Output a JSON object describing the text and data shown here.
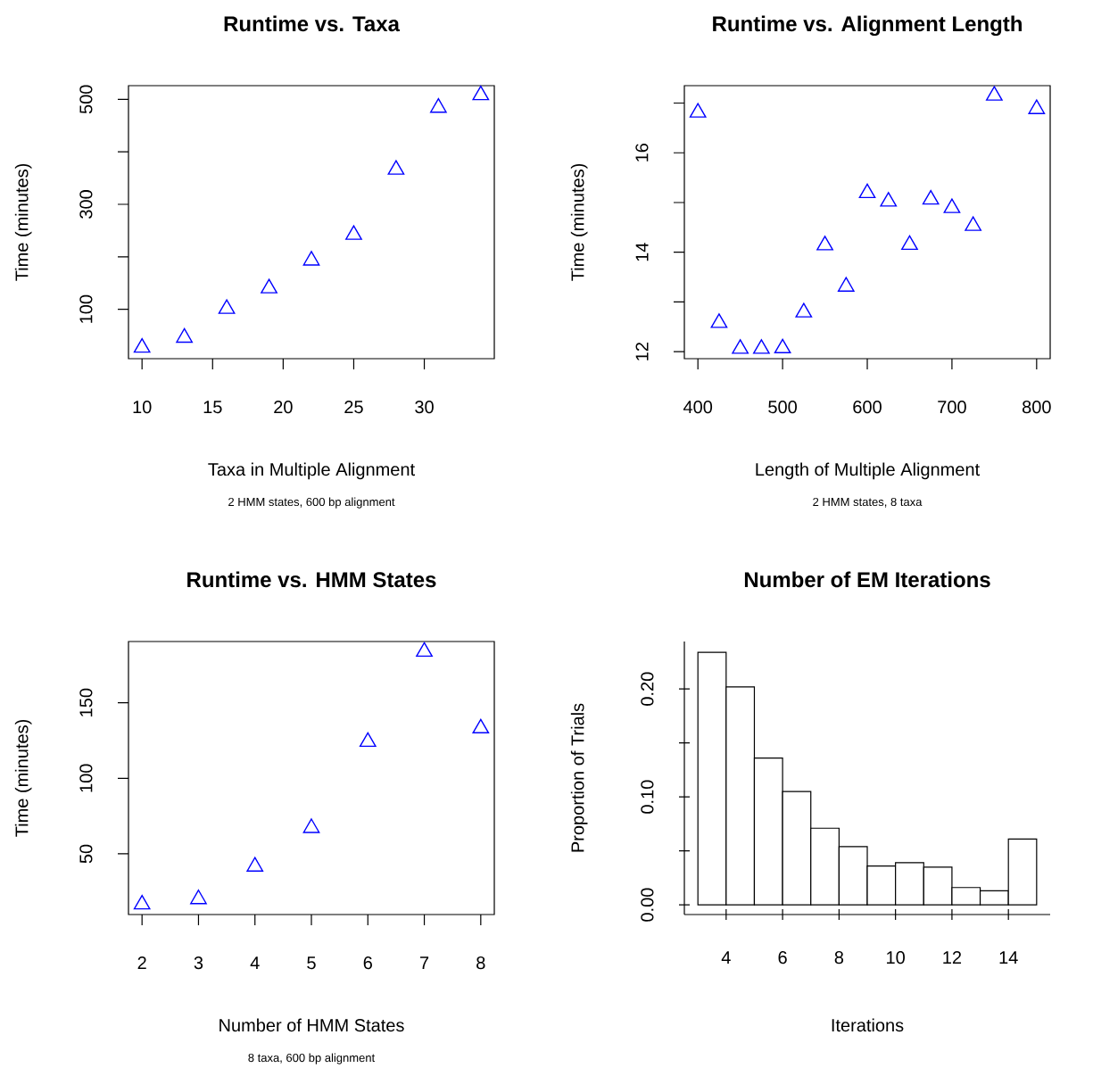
{
  "chart_data": [
    {
      "type": "scatter",
      "title": "Runtime vs. Taxa",
      "subtitle": "2 HMM states, 600 bp alignment",
      "xlabel": "Taxa in Multiple Alignment",
      "ylabel": "Time (minutes)",
      "color": "#0000ff",
      "marker": "triangle",
      "x": [
        10,
        13,
        16,
        19,
        22,
        25,
        28,
        31,
        34
      ],
      "values": [
        27,
        46,
        101,
        140,
        193,
        242,
        366,
        484,
        508
      ],
      "xlim": [
        9.04,
        34.96
      ],
      "ylim": [
        6,
        526
      ],
      "xticks": [
        10,
        15,
        20,
        25,
        30
      ],
      "yticks": [
        100,
        {
          "value": 200,
          "label": null
        },
        300,
        {
          "value": 400,
          "label": null
        },
        500
      ]
    },
    {
      "type": "scatter",
      "title": "Runtime vs. Alignment Length",
      "subtitle": "2 HMM states, 8 taxa",
      "xlabel": "Length of Multiple Alignment",
      "ylabel": "Time (minutes)",
      "color": "#0000ff",
      "marker": "triangle",
      "x": [
        400,
        425,
        450,
        475,
        500,
        525,
        550,
        575,
        600,
        625,
        650,
        675,
        700,
        725,
        750,
        800
      ],
      "values": [
        16.81,
        12.58,
        12.06,
        12.06,
        12.07,
        12.79,
        14.14,
        13.31,
        15.19,
        15.02,
        14.15,
        15.06,
        14.89,
        14.53,
        17.15,
        16.88
      ],
      "xlim": [
        384,
        816
      ],
      "ylim": [
        11.86,
        17.35
      ],
      "xticks": [
        400,
        500,
        600,
        700,
        800
      ],
      "yticks": [
        12,
        {
          "value": 13,
          "label": null
        },
        14,
        {
          "value": 15,
          "label": null
        },
        16,
        {
          "value": 17,
          "label": null
        }
      ]
    },
    {
      "type": "scatter",
      "title": "Runtime vs. HMM States",
      "subtitle": "8 taxa, 600 bp alignment",
      "xlabel": "Number of HMM States",
      "ylabel": "Time (minutes)",
      "color": "#0000ff",
      "marker": "triangle",
      "x": [
        2,
        3,
        4,
        5,
        6,
        7,
        8
      ],
      "values": [
        16.5,
        20,
        41.6,
        67.1,
        124.2,
        183.9,
        133.1
      ],
      "xlim": [
        1.76,
        8.24
      ],
      "ylim": [
        9.8,
        190.6
      ],
      "xticks": [
        2,
        3,
        4,
        5,
        6,
        7,
        8
      ],
      "yticks": [
        50,
        100,
        150
      ]
    },
    {
      "type": "histogram",
      "title": "Number of EM Iterations",
      "xlabel": "Iterations",
      "ylabel": "Proportion of Trials",
      "color": "#ffffff",
      "bins": [
        3,
        4,
        5,
        6,
        7,
        8,
        9,
        10,
        11,
        12,
        13,
        14,
        15
      ],
      "values": [
        0.234,
        0.202,
        0.136,
        0.105,
        0.071,
        0.054,
        0.036,
        0.039,
        0.035,
        0.016,
        0.013,
        0.061
      ],
      "xlim": [
        2.52,
        15.48
      ],
      "ylim": [
        -0.009,
        0.244
      ],
      "xticks": [
        4,
        6,
        8,
        10,
        12,
        14
      ],
      "yticks": [
        {
          "value": 0,
          "label": "0.00"
        },
        {
          "value": 0.05,
          "label": null
        },
        {
          "value": 0.1,
          "label": "0.10"
        },
        {
          "value": 0.15,
          "label": null
        },
        {
          "value": 0.2,
          "label": "0.20"
        }
      ]
    }
  ]
}
